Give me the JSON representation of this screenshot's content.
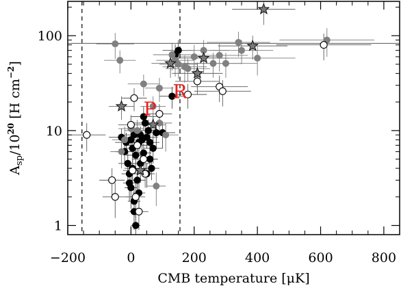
{
  "chart_data": {
    "type": "scatter",
    "title": "",
    "xlabel": "CMB temperature [μK]",
    "ylabel_main": "A",
    "ylabel_sub": "sp",
    "ylabel_rest": "/10",
    "ylabel_sup": "20",
    "ylabel_unit": " [H cm",
    "ylabel_unit_sup": "−2",
    "ylabel_close": "]",
    "xlim": [
      -200,
      850
    ],
    "ylim": [
      0.8,
      230
    ],
    "y_scale": "log",
    "x_ticks": [
      {
        "v": -200,
        "label": "−200"
      },
      {
        "v": 0,
        "label": "0"
      },
      {
        "v": 200,
        "label": "200"
      },
      {
        "v": 400,
        "label": "400"
      },
      {
        "v": 600,
        "label": "600"
      },
      {
        "v": 800,
        "label": "800"
      }
    ],
    "y_ticks": [
      {
        "v": 1,
        "label": "1"
      },
      {
        "v": 10,
        "label": "10"
      },
      {
        "v": 100,
        "label": "100"
      }
    ],
    "vlines": [
      -155,
      155
    ],
    "hline": 83,
    "colors": {
      "filled": "#000000",
      "grey": "#808080",
      "star": "#7a7a7a",
      "annotation": "#e8231f"
    },
    "annotations": [
      {
        "text": "R",
        "x": 155,
        "y": 26
      },
      {
        "text": "P",
        "x": 60,
        "y": 17
      }
    ],
    "series": [
      {
        "marker": "filled",
        "points": [
          [
            -30,
            8.5,
            40,
            2
          ],
          [
            -20,
            6.0,
            30,
            1.5
          ],
          [
            -15,
            7.5,
            35,
            2
          ],
          [
            -10,
            4.5,
            30,
            1.5
          ],
          [
            -5,
            3.5,
            25,
            1
          ],
          [
            0,
            8.0,
            30,
            2
          ],
          [
            0,
            2.5,
            20,
            1
          ],
          [
            5,
            6.5,
            25,
            1.5
          ],
          [
            10,
            1.8,
            20,
            0.6
          ],
          [
            10,
            1.4,
            15,
            0.5
          ],
          [
            15,
            5.5,
            30,
            1.5
          ],
          [
            20,
            3.0,
            25,
            1
          ],
          [
            20,
            7.0,
            30,
            2
          ],
          [
            25,
            2.2,
            20,
            0.8
          ],
          [
            30,
            4.5,
            30,
            1.5
          ],
          [
            35,
            8.0,
            30,
            2
          ],
          [
            40,
            5.8,
            25,
            1.5
          ],
          [
            45,
            12,
            35,
            3
          ],
          [
            50,
            8.5,
            35,
            2
          ],
          [
            50,
            3.5,
            25,
            1
          ],
          [
            55,
            10,
            35,
            3
          ],
          [
            60,
            7.5,
            30,
            2
          ],
          [
            60,
            5.0,
            25,
            1.5
          ],
          [
            65,
            4.0,
            25,
            1
          ],
          [
            70,
            6.5,
            30,
            2
          ],
          [
            30,
            9.0,
            30,
            2
          ],
          [
            15,
            1.0,
            15,
            0.4
          ],
          [
            80,
            9.5,
            35,
            3
          ],
          [
            100,
            9.5,
            40,
            3
          ],
          [
            40,
            14,
            40,
            4
          ],
          [
            25,
            7.5,
            30,
            2
          ],
          [
            5,
            4.0,
            25,
            1
          ],
          [
            -5,
            2.8,
            20,
            1
          ],
          [
            10,
            9.0,
            30,
            2
          ],
          [
            130,
            23,
            40,
            6
          ],
          [
            150,
            70,
            50,
            20
          ],
          [
            140,
            63,
            50,
            18
          ]
        ]
      },
      {
        "marker": "grey",
        "points": [
          [
            -50,
            82,
            60,
            25
          ],
          [
            -35,
            55,
            50,
            15
          ],
          [
            -20,
            8.0,
            40,
            3
          ],
          [
            -30,
            6.0,
            35,
            2
          ],
          [
            0,
            10.5,
            40,
            3
          ],
          [
            20,
            10,
            40,
            3
          ],
          [
            40,
            31,
            50,
            8
          ],
          [
            70,
            18,
            40,
            5
          ],
          [
            80,
            2.6,
            30,
            1
          ],
          [
            90,
            12,
            40,
            3
          ],
          [
            90,
            28,
            45,
            8
          ],
          [
            110,
            9.0,
            40,
            3
          ],
          [
            130,
            63,
            60,
            20
          ],
          [
            140,
            55,
            60,
            18
          ],
          [
            150,
            50,
            60,
            15
          ],
          [
            170,
            47,
            70,
            15
          ],
          [
            200,
            60,
            80,
            20
          ],
          [
            230,
            70,
            80,
            20
          ],
          [
            260,
            51,
            90,
            15
          ],
          [
            280,
            62,
            90,
            20
          ],
          [
            300,
            51,
            100,
            15
          ],
          [
            340,
            85,
            100,
            25
          ],
          [
            350,
            70,
            100,
            20
          ],
          [
            400,
            58,
            120,
            20
          ],
          [
            620,
            90,
            150,
            30
          ],
          [
            210,
            40,
            80,
            12
          ],
          [
            180,
            45,
            70,
            12
          ]
        ]
      },
      {
        "marker": "open",
        "points": [
          [
            -140,
            9.0,
            60,
            3
          ],
          [
            -60,
            3.0,
            40,
            1
          ],
          [
            -50,
            2.0,
            40,
            0.8
          ],
          [
            0,
            11.5,
            40,
            3
          ],
          [
            10,
            22,
            40,
            6
          ],
          [
            20,
            7.0,
            35,
            2
          ],
          [
            15,
            2.0,
            30,
            0.8
          ],
          [
            25,
            1.4,
            30,
            0.5
          ],
          [
            40,
            5.0,
            35,
            1.5
          ],
          [
            45,
            3.5,
            30,
            1
          ],
          [
            5,
            3.8,
            30,
            1.2
          ],
          [
            90,
            15,
            40,
            4
          ],
          [
            180,
            24,
            60,
            7
          ],
          [
            210,
            33,
            70,
            9
          ],
          [
            280,
            29,
            90,
            9
          ],
          [
            290,
            26,
            90,
            8
          ],
          [
            610,
            80,
            150,
            25
          ]
        ]
      },
      {
        "marker": "star",
        "points": [
          [
            -30,
            18,
            40,
            5
          ],
          [
            70,
            11.5,
            40,
            3
          ],
          [
            125,
            51,
            60,
            15
          ],
          [
            210,
            40,
            80,
            12
          ],
          [
            230,
            58,
            80,
            18
          ],
          [
            385,
            78,
            110,
            22
          ],
          [
            420,
            190,
            100,
            60
          ],
          [
            30,
            3.8,
            30,
            1
          ]
        ]
      }
    ]
  }
}
